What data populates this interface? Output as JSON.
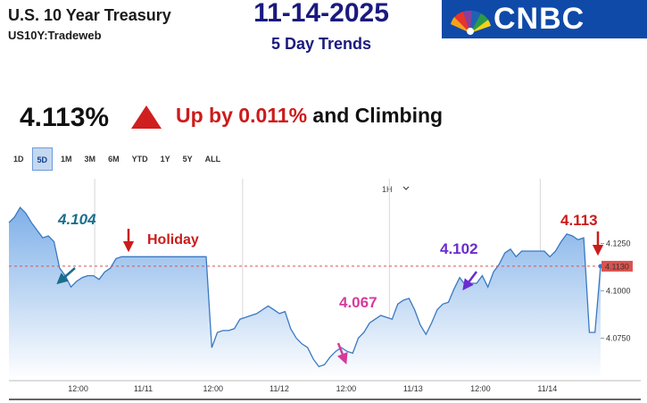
{
  "header": {
    "title": "U.S. 10 Year Treasury",
    "subtitle": "US10Y:Tradeweb",
    "date": "11-14-2025",
    "period_label": "5 Day Trends",
    "logo_text": "CNBC"
  },
  "quote": {
    "price": "4.113%",
    "direction": "up",
    "change_text": "Up by 0.011%",
    "change_suffix": " and Climbing"
  },
  "range_tabs": [
    "1D",
    "5D",
    "1M",
    "3M",
    "6M",
    "YTD",
    "1Y",
    "5Y",
    "ALL"
  ],
  "active_tab": "5D",
  "interval_selector": "1H",
  "chart_data": {
    "type": "area",
    "x_labels": [
      "12:00",
      "11/11",
      "12:00",
      "11/12",
      "12:00",
      "11/13",
      "12:00",
      "11/14"
    ],
    "y_ticks": [
      "4.1250",
      "4.1000",
      "4.0750"
    ],
    "ylim": [
      4.053,
      4.1545
    ],
    "current_value_label": "4.1130",
    "series": [
      {
        "values": [
          4.136,
          4.139,
          4.144,
          4.141,
          4.136,
          4.132,
          4.128,
          4.129,
          4.126,
          4.112,
          4.108,
          4.102,
          4.105,
          4.107,
          4.108,
          4.108,
          4.106,
          4.11,
          4.112,
          4.117,
          4.118,
          4.118,
          4.118,
          4.118,
          4.118,
          4.118,
          4.118,
          4.118,
          4.118,
          4.118,
          4.118,
          4.118,
          4.118,
          4.118,
          4.118,
          4.118,
          4.07,
          4.078,
          4.079,
          4.079,
          4.08,
          4.085,
          4.086,
          4.087,
          4.088,
          4.09,
          4.092,
          4.09,
          4.088,
          4.089,
          4.08,
          4.075,
          4.072,
          4.07,
          4.064,
          4.06,
          4.061,
          4.065,
          4.068,
          4.07,
          4.068,
          4.067,
          4.075,
          4.078,
          4.083,
          4.085,
          4.087,
          4.086,
          4.085,
          4.093,
          4.095,
          4.096,
          4.09,
          4.082,
          4.077,
          4.083,
          4.09,
          4.093,
          4.094,
          4.101,
          4.107,
          4.103,
          4.104,
          4.104,
          4.108,
          4.102,
          4.11,
          4.114,
          4.12,
          4.122,
          4.118,
          4.121,
          4.121,
          4.121,
          4.121,
          4.121,
          4.118,
          4.121,
          4.126,
          4.13,
          4.129,
          4.127,
          4.128,
          4.078,
          4.078,
          4.113
        ]
      }
    ],
    "annotations": [
      {
        "text": "4.104",
        "color": "#1a6e8c"
      },
      {
        "text": "Holiday",
        "color": "#cc1b1b"
      },
      {
        "text": "4.067",
        "color": "#d63a9a"
      },
      {
        "text": "4.102",
        "color": "#6a2ccf"
      },
      {
        "text": "4.113",
        "color": "#cc1b1b"
      }
    ],
    "colors": {
      "line": "#3a78c2",
      "fill_top": "#7fb0e8",
      "fill_bottom": "#ffffff",
      "ref_line": "#d9534f",
      "price_tag": "#d9534f"
    }
  }
}
